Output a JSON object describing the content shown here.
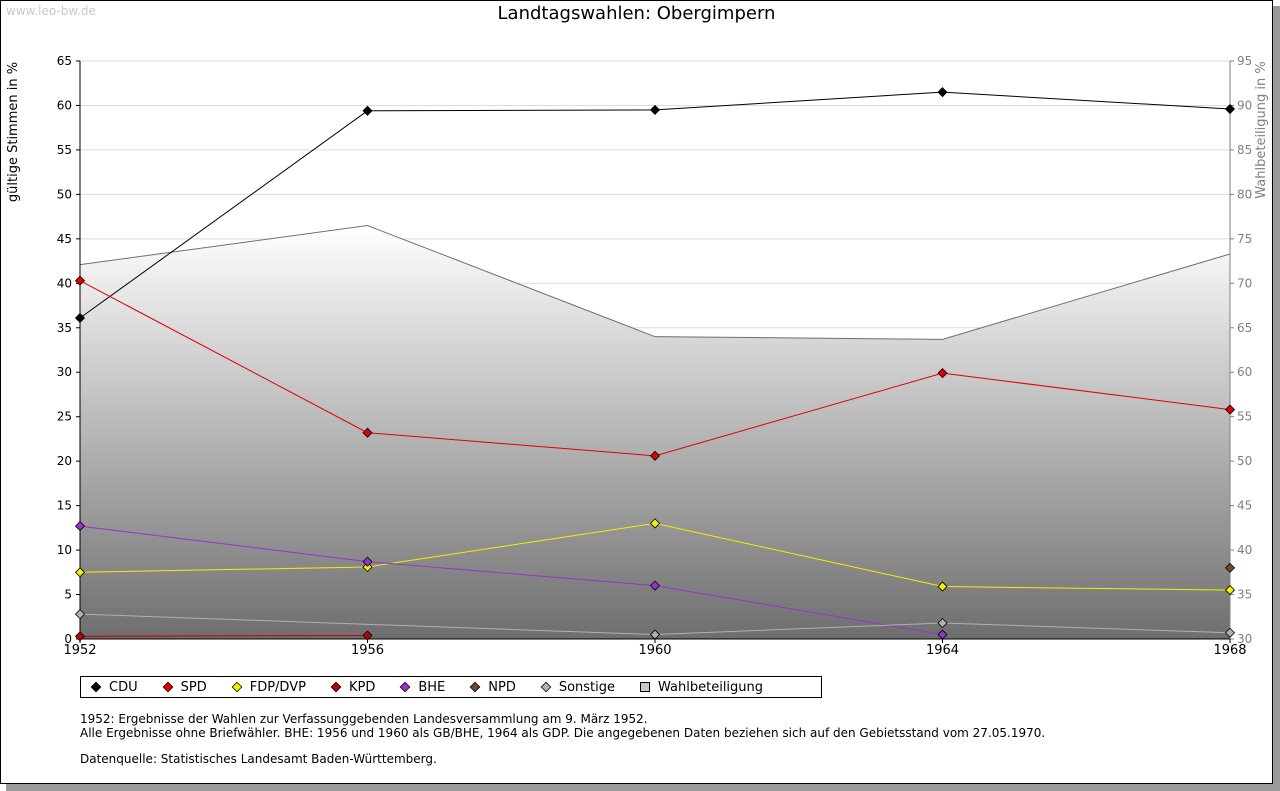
{
  "watermark": "www.leo-bw.de",
  "chart_data": {
    "type": "line",
    "title": "Landtagswahlen: Obergimpern",
    "ylabel": "gültige Stimmen in %",
    "y2label": "Wahlbeteiligung in %",
    "x": [
      "1952",
      "1956",
      "1960",
      "1964",
      "1968"
    ],
    "ylim": [
      0,
      65
    ],
    "yticks": [
      0,
      5,
      10,
      15,
      20,
      25,
      30,
      35,
      40,
      45,
      50,
      55,
      60,
      65
    ],
    "y2lim": [
      30,
      95
    ],
    "y2ticks": [
      30,
      35,
      40,
      45,
      50,
      55,
      60,
      65,
      70,
      75,
      80,
      85,
      90,
      95
    ],
    "grid": true,
    "legend_position": "bottom",
    "series": [
      {
        "name": "CDU",
        "color": "#000000",
        "values": [
          36.1,
          59.4,
          59.5,
          61.5,
          59.6
        ]
      },
      {
        "name": "SPD",
        "color": "#e00000",
        "values": [
          40.3,
          23.2,
          20.6,
          29.9,
          25.8
        ]
      },
      {
        "name": "FDP/DVP",
        "color": "#f0f000",
        "values": [
          7.5,
          8.1,
          13.0,
          5.9,
          5.5
        ]
      },
      {
        "name": "KPD",
        "color": "#c00000",
        "values": [
          0.3,
          0.4,
          null,
          null,
          null
        ]
      },
      {
        "name": "BHE",
        "color": "#9932cc",
        "values": [
          12.7,
          8.7,
          6.0,
          0.5,
          null
        ]
      },
      {
        "name": "NPD",
        "color": "#6b4a2b",
        "values": [
          null,
          null,
          null,
          null,
          8.0
        ]
      },
      {
        "name": "Sonstige",
        "color": "#b0b0b0",
        "values": [
          2.8,
          null,
          0.5,
          1.8,
          0.7
        ]
      }
    ],
    "turnout": {
      "name": "Wahlbeteiligung",
      "values": [
        72.1,
        76.5,
        64.0,
        63.7,
        73.3
      ]
    }
  },
  "notes": [
    "1952: Ergebnisse der Wahlen zur Verfassunggebenden Landesversammlung am 9. März 1952.",
    "Alle Ergebnisse ohne Briefwähler. BHE: 1956 und 1960 als GB/BHE, 1964 als GDP. Die angegebenen Daten beziehen sich auf den Gebietsstand vom 27.05.1970."
  ],
  "source": "Datenquelle: Statistisches Landesamt Baden-Württemberg."
}
